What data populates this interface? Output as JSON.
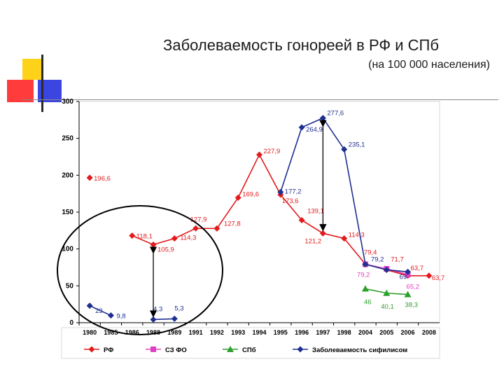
{
  "title": "Заболеваемость гонореей в РФ и СПб",
  "subtitle": "(на 100 000 населения)",
  "colors": {
    "rf": "#e31a1c",
    "szfo": "#e040c0",
    "spb": "#2ca02c",
    "syphilis": "#1f2f8f",
    "axis": "#000000",
    "box": "#d9d9d9"
  },
  "chart_data": {
    "type": "line",
    "categories": [
      "1980",
      "1985",
      "1986",
      "1988",
      "1989",
      "1991",
      "1992",
      "1993",
      "1994",
      "1995",
      "1996",
      "1997",
      "1998",
      "2004",
      "2005",
      "2006",
      "2008"
    ],
    "ylim": [
      0,
      300
    ],
    "yticks": [
      "0",
      "50",
      "100",
      "150",
      "200",
      "250",
      "300"
    ],
    "grid": false,
    "legend": "bottom",
    "series": [
      {
        "name": "РФ",
        "key": "rf",
        "values": [
          196.6,
          null,
          118.1,
          105.9,
          114.3,
          127.9,
          127.8,
          169.6,
          227.9,
          173.6,
          139.1,
          121.2,
          114.3,
          79.4,
          71.7,
          63.7,
          63.7
        ],
        "labels": [
          "196,6",
          "",
          "118,1",
          "105,9",
          "114,3",
          "127,9",
          "127,8",
          "169,6",
          "227,9",
          "173,6",
          "139,1",
          "121,2",
          "114,3",
          "79,4",
          "71,7",
          "63,7",
          "63,7"
        ]
      },
      {
        "name": "СЗ ФО",
        "key": "szfo",
        "values": [
          null,
          null,
          null,
          null,
          null,
          null,
          null,
          null,
          null,
          null,
          null,
          null,
          null,
          79.2,
          73.1,
          65.2,
          null
        ],
        "labels": [
          "",
          "",
          "",
          "",
          "",
          "",
          "",
          "",
          "",
          "",
          "",
          "",
          "",
          "79,2",
          "",
          "65,2",
          ""
        ]
      },
      {
        "name": "СПб",
        "key": "spb",
        "values": [
          null,
          null,
          null,
          null,
          null,
          null,
          null,
          null,
          null,
          null,
          null,
          null,
          null,
          46,
          40.1,
          38.3,
          null
        ],
        "labels": [
          "",
          "",
          "",
          "",
          "",
          "",
          "",
          "",
          "",
          "",
          "",
          "",
          "",
          "46",
          "40,1",
          "38,3",
          ""
        ]
      },
      {
        "name": "Заболеваемость сифилисом",
        "key": "syphilis",
        "values": [
          23,
          9.8,
          null,
          4.3,
          5.3,
          null,
          null,
          null,
          null,
          177.2,
          264.9,
          277.6,
          235.1,
          79.2,
          71.7,
          69,
          null
        ],
        "labels": [
          "23",
          "9,8",
          "",
          "4,3",
          "5,3",
          "",
          "",
          "",
          "",
          "177,2",
          "264,9",
          "277,6",
          "235,1",
          "79,2",
          "",
          "69",
          ""
        ]
      }
    ],
    "annotations": [
      "arrow 1997: 277,6 to 121,2",
      "arrow 1988: 105,9 to 4,3",
      "ellipse around 1980–1991"
    ]
  }
}
